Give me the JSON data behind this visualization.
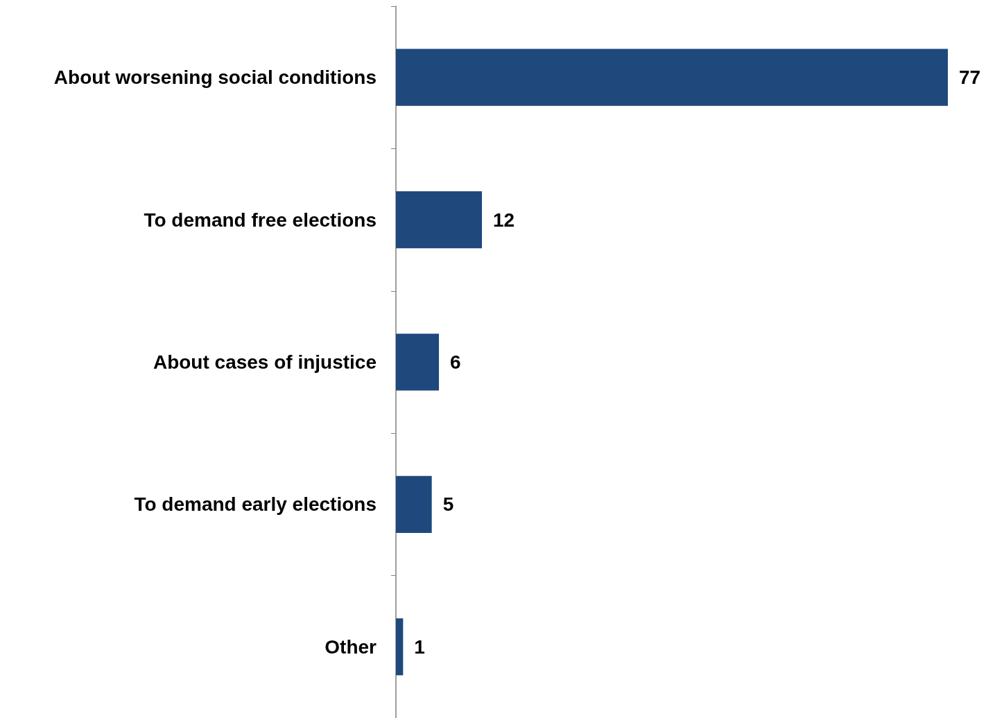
{
  "chart_data": {
    "type": "bar",
    "orientation": "horizontal",
    "categories": [
      "About worsening social conditions",
      "To demand free elections",
      "About cases of injustice",
      "To demand early elections",
      "Other"
    ],
    "values": [
      77,
      12,
      6,
      5,
      1
    ],
    "color": "#1f497d",
    "data_labels": true
  }
}
